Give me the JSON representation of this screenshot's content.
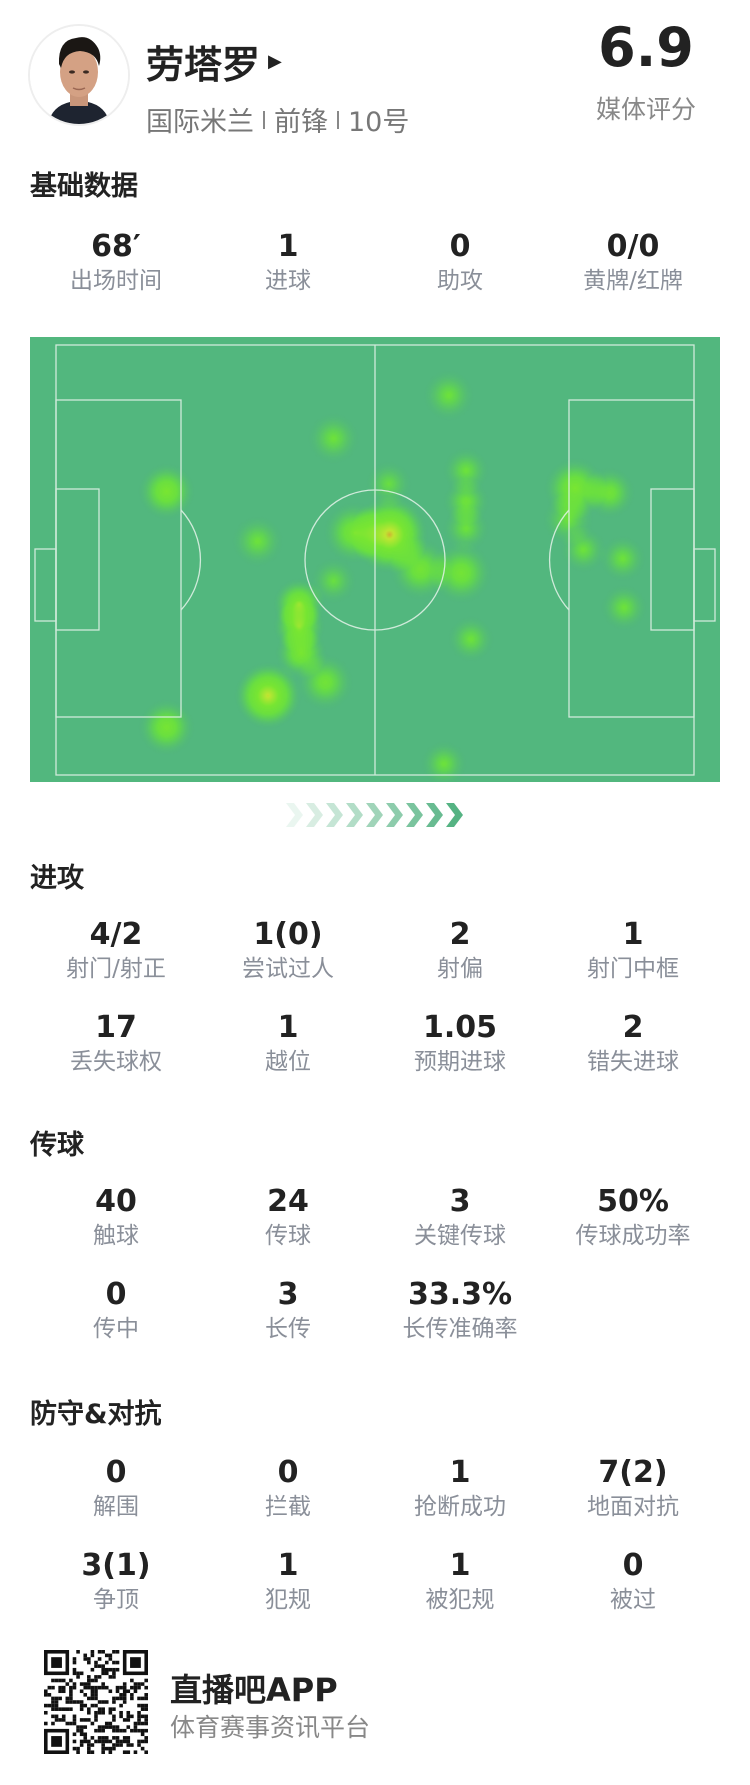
{
  "player": {
    "name": "劳塔罗",
    "team": "国际米兰",
    "position": "前锋",
    "number": "10号",
    "rating": "6.9",
    "rating_label": "媒体评分"
  },
  "basic": {
    "title": "基础数据",
    "stats": [
      {
        "value": "68′",
        "label": "出场时间"
      },
      {
        "value": "1",
        "label": "进球"
      },
      {
        "value": "0",
        "label": "助攻"
      },
      {
        "value": "0/0",
        "label": "黄牌/红牌"
      }
    ]
  },
  "heatmap": {
    "pitch_color": "#52b77e",
    "line_color": "#e8f5ec",
    "direction": "left-to-right"
  },
  "attack": {
    "title": "进攻",
    "stats": [
      {
        "value": "4/2",
        "label": "射门/射正"
      },
      {
        "value": "1(0)",
        "label": "尝试过人"
      },
      {
        "value": "2",
        "label": "射偏"
      },
      {
        "value": "1",
        "label": "射门中框"
      },
      {
        "value": "17",
        "label": "丢失球权"
      },
      {
        "value": "1",
        "label": "越位"
      },
      {
        "value": "1.05",
        "label": "预期进球"
      },
      {
        "value": "2",
        "label": "错失进球"
      }
    ]
  },
  "passing": {
    "title": "传球",
    "stats": [
      {
        "value": "40",
        "label": "触球"
      },
      {
        "value": "24",
        "label": "传球"
      },
      {
        "value": "3",
        "label": "关键传球"
      },
      {
        "value": "50%",
        "label": "传球成功率"
      },
      {
        "value": "0",
        "label": "传中"
      },
      {
        "value": "3",
        "label": "长传"
      },
      {
        "value": "33.3%",
        "label": "长传准确率"
      }
    ]
  },
  "defense": {
    "title": "防守&对抗",
    "stats": [
      {
        "value": "0",
        "label": "解围"
      },
      {
        "value": "0",
        "label": "拦截"
      },
      {
        "value": "1",
        "label": "抢断成功"
      },
      {
        "value": "7(2)",
        "label": "地面对抗"
      },
      {
        "value": "3(1)",
        "label": "争顶"
      },
      {
        "value": "1",
        "label": "犯规"
      },
      {
        "value": "1",
        "label": "被犯规"
      },
      {
        "value": "0",
        "label": "被过"
      }
    ]
  },
  "footer": {
    "app_name": "直播吧APP",
    "tagline": "体育赛事资讯平台"
  }
}
